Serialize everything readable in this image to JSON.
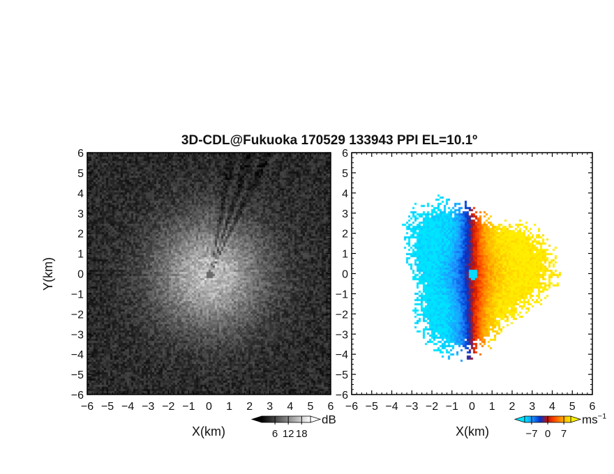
{
  "title": "3D-CDL@Fukuoka 170529 133943 PPI EL=10.1º",
  "chart_data": [
    {
      "id": "reflectivity",
      "type": "heatmap",
      "xlabel": "X(km)",
      "ylabel": "Y(km)",
      "xlim": [
        -6,
        6
      ],
      "ylim": [
        -6,
        6
      ],
      "x_ticks": [
        "−6",
        "−5",
        "−4",
        "−3",
        "−2",
        "−1",
        "0",
        "1",
        "2",
        "3",
        "4",
        "5",
        "6"
      ],
      "y_ticks": [
        "6",
        "5",
        "4",
        "3",
        "2",
        "1",
        "0",
        "−1",
        "−2",
        "−3",
        "−4",
        "−5",
        "−6"
      ],
      "colorbar": {
        "ticks": [
          "6",
          "12",
          "18"
        ],
        "tick_values": [
          6,
          12,
          18
        ],
        "range": [
          0,
          22
        ],
        "unit": "dB",
        "colormap": [
          "#000000",
          "#ffffff"
        ]
      },
      "field": {
        "center_bright_radius_km": 2.6,
        "blind_zone_radius_km": 0.2,
        "max_range_km": 6,
        "shadow_azimuths_deg": [
          10,
          18,
          25
        ]
      }
    },
    {
      "id": "doppler_velocity",
      "type": "heatmap",
      "xlabel": "X(km)",
      "ylabel": "",
      "xlim": [
        -6,
        6
      ],
      "ylim": [
        -6,
        6
      ],
      "x_ticks": [
        "−6",
        "−5",
        "−4",
        "−3",
        "−2",
        "−1",
        "0",
        "1",
        "2",
        "3",
        "4",
        "5",
        "6"
      ],
      "y_ticks": [
        "6",
        "5",
        "4",
        "3",
        "2",
        "1",
        "0",
        "−1",
        "−2",
        "−3",
        "−4",
        "−5",
        "−6"
      ],
      "colorbar": {
        "ticks": [
          "−7",
          "0",
          "7"
        ],
        "tick_values": [
          -7,
          0,
          7
        ],
        "range": [
          -10,
          10
        ],
        "unit": "ms",
        "unit_exponent": "−1",
        "colormap": [
          "#00e5ff",
          "#1e90ff",
          "#0033cc",
          "#cc1100",
          "#ff5500",
          "#ffaa00",
          "#ffee00"
        ]
      },
      "field": {
        "negative_side": "west",
        "positive_side": "east",
        "data_extent_km": 4.6,
        "max_abs_velocity": 10
      }
    }
  ]
}
